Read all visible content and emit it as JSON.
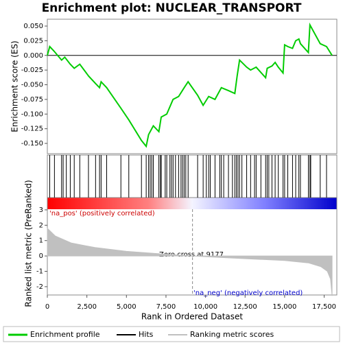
{
  "chart_data": [
    {
      "type": "line",
      "title": "Enrichment plot: NUCLEAR_TRANSPORT",
      "y_label": "Enrichment score (ES)",
      "xlim": [
        0,
        18300
      ],
      "ylim": [
        -0.1675,
        0.0617
      ],
      "yticks": [
        {
          "value": 0.05,
          "label": "0.050"
        },
        {
          "value": 0.025,
          "label": "0.025"
        },
        {
          "value": 0,
          "label": "0.000"
        },
        {
          "value": -0.025,
          "label": "-0.025"
        },
        {
          "value": -0.05,
          "label": "-0.050"
        },
        {
          "value": -0.075,
          "label": "-0.075"
        },
        {
          "value": -0.1,
          "label": "-0.100"
        },
        {
          "value": -0.125,
          "label": "-0.125"
        },
        {
          "value": -0.15,
          "label": "-0.150"
        }
      ],
      "series": [
        {
          "name": "Enrichment profile",
          "color": "#00cc00",
          "x": [
            0,
            150,
            400,
            900,
            1100,
            1450,
            1700,
            2050,
            2600,
            3050,
            3300,
            3400,
            3750,
            4650,
            5150,
            5950,
            6250,
            6400,
            6700,
            7050,
            7200,
            7550,
            7950,
            8300,
            8650,
            8900,
            9500,
            9850,
            10200,
            10600,
            11000,
            11450,
            11850,
            12000,
            12150,
            12600,
            12850,
            13200,
            13800,
            13900,
            14200,
            14400,
            14600,
            14900,
            15000,
            15200,
            15500,
            15700,
            15900,
            16000,
            16500,
            16600,
            17250,
            17650,
            18000
          ],
          "values": [
            0,
            0.015,
            0.008,
            -0.008,
            -0.003,
            -0.015,
            -0.022,
            -0.015,
            -0.035,
            -0.048,
            -0.055,
            -0.045,
            -0.055,
            -0.09,
            -0.11,
            -0.145,
            -0.155,
            -0.135,
            -0.12,
            -0.13,
            -0.105,
            -0.1,
            -0.075,
            -0.07,
            -0.055,
            -0.045,
            -0.068,
            -0.085,
            -0.07,
            -0.075,
            -0.055,
            -0.06,
            -0.065,
            -0.035,
            -0.008,
            -0.02,
            -0.025,
            -0.02,
            -0.038,
            -0.022,
            -0.018,
            -0.012,
            -0.02,
            -0.03,
            0.018,
            0.015,
            0.012,
            0.025,
            0.028,
            0.02,
            0.005,
            0.052,
            0.02,
            0.015,
            0
          ]
        }
      ]
    },
    {
      "type": "hits",
      "xlim": [
        0,
        18300
      ],
      "series": [
        {
          "name": "Hits",
          "color": "#000000",
          "x": [
            150,
            450,
            900,
            1000,
            1200,
            1450,
            1700,
            2050,
            2600,
            3050,
            3300,
            3400,
            3750,
            4650,
            5150,
            5950,
            6250,
            6400,
            6500,
            6600,
            6700,
            7050,
            7150,
            7200,
            7450,
            7550,
            7750,
            7850,
            7950,
            8100,
            8300,
            8450,
            8550,
            8650,
            8750,
            8900,
            9500,
            9850,
            10050,
            10200,
            10300,
            10600,
            10900,
            11000,
            11150,
            11450,
            11700,
            11850,
            11950,
            12050,
            12150,
            12300,
            12600,
            12850,
            13100,
            13200,
            13500,
            13800,
            13900,
            14000,
            14200,
            14400,
            14600,
            14900,
            15000,
            15200,
            15500,
            15700,
            15900,
            16000,
            16500,
            16600,
            16650,
            17250,
            17650
          ]
        }
      ]
    },
    {
      "type": "area",
      "x_label": "Rank in Ordered Dataset",
      "y_label": "Ranked list metric (PreRanked)",
      "xlim": [
        0,
        18300
      ],
      "ylim": [
        -2.54,
        3.8
      ],
      "xticks": [
        0,
        {
          "value": 2500,
          "label": "2,500"
        },
        {
          "value": 5000,
          "label": "5,000"
        },
        {
          "value": 7500,
          "label": "7,500"
        },
        {
          "value": 10000,
          "label": "10,000"
        },
        {
          "value": 12500,
          "label": "12,500"
        },
        {
          "value": 15000,
          "label": "15,000"
        },
        {
          "value": 17500,
          "label": "17,500"
        }
      ],
      "yticks": [
        3,
        2,
        1,
        0,
        -1,
        -2
      ],
      "zero_cross": 9177,
      "annotations": [
        "'na_pos' (positively correlated)",
        "Zero cross at 9177",
        "'na_neg' (negatively correlated)"
      ],
      "series": [
        {
          "name": "Ranking metric scores",
          "color": "#c0c0c0",
          "x": [
            0,
            500,
            1500,
            3000,
            5000,
            7000,
            9177,
            11000,
            13000,
            15000,
            16500,
            17300,
            17700,
            17900,
            18000
          ],
          "values": [
            1.8,
            1.3,
            0.85,
            0.55,
            0.3,
            0.15,
            0,
            -0.1,
            -0.2,
            -0.3,
            -0.45,
            -0.7,
            -1.0,
            -1.5,
            -2.6
          ]
        }
      ]
    }
  ]
}
